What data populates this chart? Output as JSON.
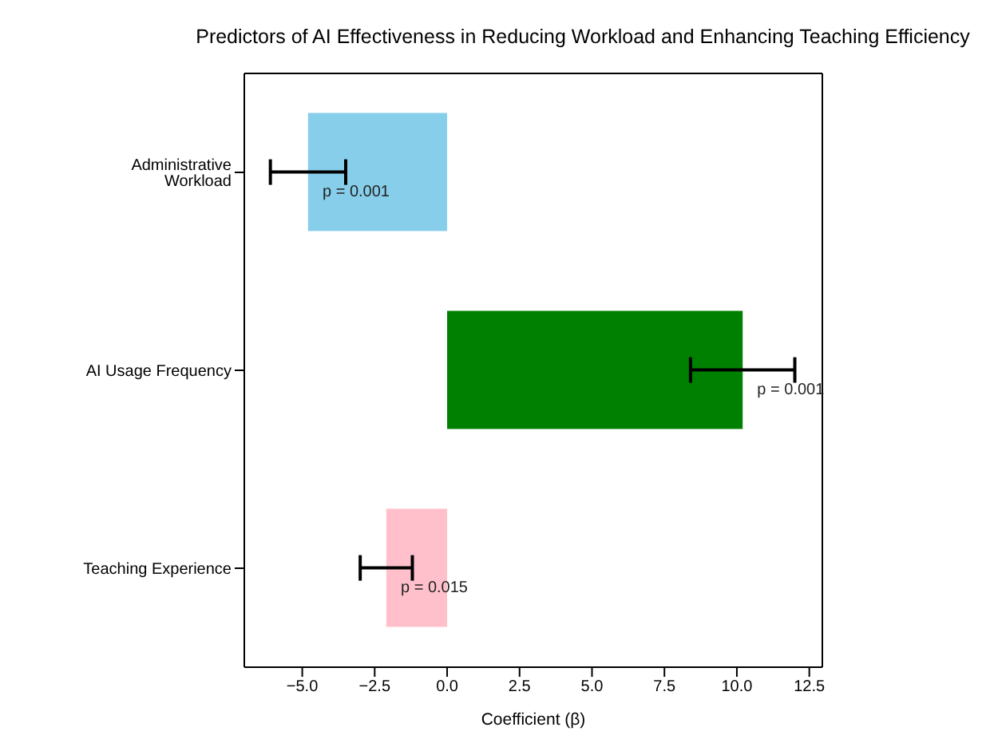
{
  "chart_data": {
    "type": "bar",
    "orientation": "horizontal",
    "title": "Predictors of AI Effectiveness in Reducing Workload and Enhancing Teaching Efficiency",
    "xlabel": "Coefficient (β)",
    "categories": [
      "Administrative Workload",
      "AI Usage Frequency",
      "Teaching Experience"
    ],
    "values": [
      -4.8,
      10.2,
      -2.1
    ],
    "colors": [
      "#87ceeb",
      "#008000",
      "#ffc0cb"
    ],
    "errors": [
      1.3,
      1.8,
      0.9
    ],
    "xlim": [
      -7,
      12.95
    ],
    "xticks": [
      {
        "value": -5,
        "label": "−5.0"
      },
      {
        "value": -2.5,
        "label": "−2.5"
      },
      {
        "value": 0,
        "label": "0.0"
      },
      {
        "value": 2.5,
        "label": "2.5"
      },
      {
        "value": 5,
        "label": "5.0"
      },
      {
        "value": 7.5,
        "label": "7.5"
      },
      {
        "value": 10,
        "label": "10.0"
      },
      {
        "value": 12.5,
        "label": "12.5"
      }
    ],
    "annotations": [
      {
        "text": "p = 0.001",
        "x": -4.3,
        "y": "Administrative Workload"
      },
      {
        "text": "p = 0.001",
        "x": 10.7,
        "y": "AI Usage Frequency"
      },
      {
        "text": "p = 0.015",
        "x": -1.6,
        "y": "Teaching Experience"
      }
    ],
    "grid": false,
    "legend": false
  }
}
